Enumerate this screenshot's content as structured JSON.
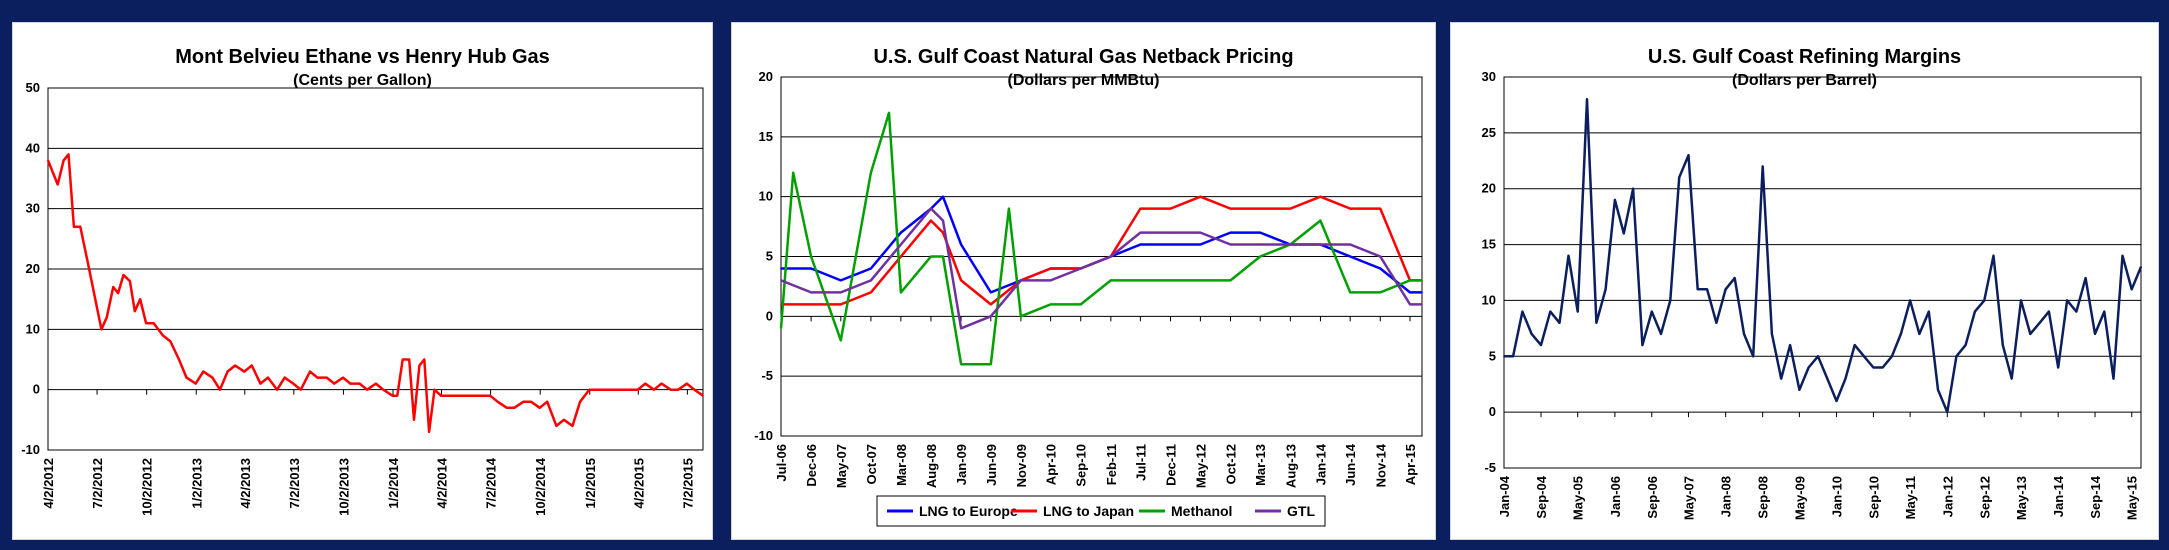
{
  "colors": {
    "background": "#0b1f5e",
    "ethane": "#ff0000",
    "lng_europe": "#0000ff",
    "lng_japan": "#ff0000",
    "methanol": "#00a000",
    "gtl": "#7030a0",
    "refining": "#0b1f5e"
  },
  "chart_data": [
    {
      "type": "line",
      "title": "Mont Belvieu Ethane vs Henry Hub Gas",
      "subtitle": "(Cents per Gallon)",
      "xlabel": "",
      "ylabel": "",
      "ylim": [
        -10,
        50
      ],
      "yticks": [
        50,
        40,
        30,
        20,
        10,
        0,
        -10
      ],
      "xrange": [
        "2012-04-02",
        "2015-07-31"
      ],
      "xtick_labels": [
        "4/2/2012",
        "7/2/2012",
        "10/2/2012",
        "1/2/2013",
        "4/2/2013",
        "7/2/2013",
        "10/2/2013",
        "1/2/2014",
        "4/2/2014",
        "7/2/2014",
        "10/2/2014",
        "1/2/2015",
        "4/2/2015",
        "7/2/2015"
      ],
      "grid": "horizontal",
      "series": [
        {
          "color": "#ff0000",
          "x": [
            "2012-04-02",
            "2012-04-20",
            "2012-05-01",
            "2012-05-10",
            "2012-05-20",
            "2012-06-01",
            "2012-06-15",
            "2012-07-01",
            "2012-07-10",
            "2012-07-20",
            "2012-08-01",
            "2012-08-10",
            "2012-08-20",
            "2012-09-01",
            "2012-09-10",
            "2012-09-20",
            "2012-10-01",
            "2012-10-15",
            "2012-11-01",
            "2012-11-15",
            "2012-12-01",
            "2012-12-15",
            "2013-01-01",
            "2013-01-15",
            "2013-02-01",
            "2013-02-15",
            "2013-03-01",
            "2013-03-15",
            "2013-04-01",
            "2013-04-15",
            "2013-05-01",
            "2013-05-15",
            "2013-06-01",
            "2013-06-15",
            "2013-07-01",
            "2013-07-15",
            "2013-08-01",
            "2013-08-15",
            "2013-09-01",
            "2013-09-15",
            "2013-10-01",
            "2013-10-15",
            "2013-11-01",
            "2013-11-15",
            "2013-12-01",
            "2013-12-15",
            "2014-01-01",
            "2014-01-10",
            "2014-01-20",
            "2014-02-01",
            "2014-02-10",
            "2014-02-20",
            "2014-03-01",
            "2014-03-10",
            "2014-03-20",
            "2014-04-01",
            "2014-04-15",
            "2014-05-01",
            "2014-05-15",
            "2014-06-01",
            "2014-06-15",
            "2014-07-01",
            "2014-07-15",
            "2014-08-01",
            "2014-08-15",
            "2014-09-01",
            "2014-09-15",
            "2014-10-01",
            "2014-10-15",
            "2014-11-01",
            "2014-11-15",
            "2014-12-01",
            "2014-12-15",
            "2015-01-01",
            "2015-01-15",
            "2015-02-01",
            "2015-02-15",
            "2015-03-01",
            "2015-03-15",
            "2015-04-01",
            "2015-04-15",
            "2015-05-01",
            "2015-05-15",
            "2015-06-01",
            "2015-06-15",
            "2015-07-01",
            "2015-07-15",
            "2015-07-31"
          ],
          "y": [
            38,
            34,
            38,
            39,
            27,
            27,
            21,
            14,
            10,
            12,
            17,
            16,
            19,
            18,
            13,
            15,
            11,
            11,
            9,
            8,
            5,
            2,
            1,
            3,
            2,
            0,
            3,
            4,
            3,
            4,
            1,
            2,
            0,
            2,
            1,
            0,
            3,
            2,
            2,
            1,
            2,
            1,
            1,
            0,
            1,
            0,
            -1,
            -1,
            5,
            5,
            -5,
            4,
            5,
            -7,
            0,
            -1,
            -1,
            -1,
            -1,
            -1,
            -1,
            -1,
            -2,
            -3,
            -3,
            -2,
            -2,
            -3,
            -2,
            -6,
            -5,
            -6,
            -2,
            0,
            0,
            0,
            0,
            0,
            0,
            0,
            1,
            0,
            1,
            0,
            0,
            1,
            0,
            -1
          ]
        }
      ]
    },
    {
      "type": "line",
      "title": "U.S. Gulf Coast Natural Gas Netback Pricing",
      "subtitle": "(Dollars per MMBtu)",
      "xlabel": "",
      "ylabel": "",
      "ylim": [
        -10,
        20
      ],
      "yticks": [
        20,
        15,
        10,
        5,
        0,
        -5,
        -10
      ],
      "xrange": [
        "2006-07",
        "2015-06"
      ],
      "xtick_labels": [
        "Jul-06",
        "Dec-06",
        "May-07",
        "Oct-07",
        "Mar-08",
        "Aug-08",
        "Jan-09",
        "Jun-09",
        "Nov-09",
        "Apr-10",
        "Sep-10",
        "Feb-11",
        "Jul-11",
        "Dec-11",
        "May-12",
        "Oct-12",
        "Mar-13",
        "Aug-13",
        "Jan-14",
        "Jun-14",
        "Nov-14",
        "Apr-15"
      ],
      "grid": "horizontal",
      "legend": "bottom-center",
      "series": [
        {
          "name": "LNG to Europe",
          "color": "#0000ff",
          "x": [
            "2006-07",
            "2006-12",
            "2007-05",
            "2007-10",
            "2008-03",
            "2008-08",
            "2008-10",
            "2009-01",
            "2009-06",
            "2009-11",
            "2010-04",
            "2010-09",
            "2011-02",
            "2011-07",
            "2011-12",
            "2012-05",
            "2012-10",
            "2013-03",
            "2013-08",
            "2014-01",
            "2014-06",
            "2014-11",
            "2015-04",
            "2015-06"
          ],
          "y": [
            4,
            4,
            3,
            4,
            7,
            9,
            10,
            6,
            2,
            3,
            4,
            4,
            5,
            6,
            6,
            6,
            7,
            7,
            6,
            6,
            5,
            4,
            2,
            2
          ]
        },
        {
          "name": "LNG to Japan",
          "color": "#ff0000",
          "x": [
            "2006-07",
            "2006-12",
            "2007-05",
            "2007-10",
            "2008-03",
            "2008-08",
            "2008-10",
            "2009-01",
            "2009-06",
            "2009-11",
            "2010-04",
            "2010-09",
            "2011-02",
            "2011-07",
            "2011-12",
            "2012-05",
            "2012-10",
            "2013-03",
            "2013-08",
            "2014-01",
            "2014-06",
            "2014-11",
            "2015-04",
            "2015-06"
          ],
          "y": [
            1,
            1,
            1,
            2,
            5,
            8,
            7,
            3,
            1,
            3,
            4,
            4,
            5,
            9,
            9,
            10,
            9,
            9,
            9,
            10,
            9,
            9,
            3,
            3
          ]
        },
        {
          "name": "Methanol",
          "color": "#00a000",
          "x": [
            "2006-07",
            "2006-09",
            "2006-12",
            "2007-05",
            "2007-10",
            "2008-01",
            "2008-03",
            "2008-08",
            "2008-10",
            "2009-01",
            "2009-06",
            "2009-09",
            "2009-11",
            "2010-04",
            "2010-09",
            "2011-02",
            "2011-07",
            "2011-12",
            "2012-05",
            "2012-10",
            "2013-03",
            "2013-08",
            "2014-01",
            "2014-06",
            "2014-11",
            "2015-04",
            "2015-06"
          ],
          "y": [
            -1,
            12,
            5,
            -2,
            12,
            17,
            2,
            5,
            5,
            -4,
            -4,
            9,
            0,
            1,
            1,
            3,
            3,
            3,
            3,
            3,
            5,
            6,
            8,
            2,
            2,
            3,
            3
          ]
        },
        {
          "name": "GTL",
          "color": "#7030a0",
          "x": [
            "2006-07",
            "2006-12",
            "2007-05",
            "2007-10",
            "2008-03",
            "2008-08",
            "2008-10",
            "2009-01",
            "2009-06",
            "2009-11",
            "2010-04",
            "2010-09",
            "2011-02",
            "2011-07",
            "2011-12",
            "2012-05",
            "2012-10",
            "2013-03",
            "2013-08",
            "2014-01",
            "2014-06",
            "2014-11",
            "2015-04",
            "2015-06"
          ],
          "y": [
            3,
            2,
            2,
            3,
            6,
            9,
            8,
            -1,
            0,
            3,
            3,
            4,
            5,
            7,
            7,
            7,
            6,
            6,
            6,
            6,
            6,
            5,
            1,
            1
          ]
        }
      ]
    },
    {
      "type": "line",
      "title": "U.S. Gulf Coast Refining Margins",
      "subtitle": "(Dollars per Barrel)",
      "xlabel": "",
      "ylabel": "",
      "ylim": [
        -5,
        30
      ],
      "yticks": [
        30,
        25,
        20,
        15,
        10,
        5,
        0,
        -5
      ],
      "xrange": [
        "2004-01",
        "2015-07"
      ],
      "xtick_labels": [
        "Jan-04",
        "Sep-04",
        "May-05",
        "Jan-06",
        "Sep-06",
        "May-07",
        "Jan-08",
        "Sep-08",
        "May-09",
        "Jan-10",
        "Sep-10",
        "May-11",
        "Jan-12",
        "Sep-12",
        "May-13",
        "Jan-14",
        "Sep-14",
        "May-15"
      ],
      "grid": "horizontal",
      "series": [
        {
          "color": "#0b1f5e",
          "x": [
            "2004-01",
            "2004-03",
            "2004-05",
            "2004-07",
            "2004-09",
            "2004-11",
            "2005-01",
            "2005-03",
            "2005-05",
            "2005-07",
            "2005-09",
            "2005-11",
            "2006-01",
            "2006-03",
            "2006-05",
            "2006-07",
            "2006-09",
            "2006-11",
            "2007-01",
            "2007-03",
            "2007-05",
            "2007-07",
            "2007-09",
            "2007-11",
            "2008-01",
            "2008-03",
            "2008-05",
            "2008-07",
            "2008-09",
            "2008-11",
            "2009-01",
            "2009-03",
            "2009-05",
            "2009-07",
            "2009-09",
            "2009-11",
            "2010-01",
            "2010-03",
            "2010-05",
            "2010-07",
            "2010-09",
            "2010-11",
            "2011-01",
            "2011-03",
            "2011-05",
            "2011-07",
            "2011-09",
            "2011-11",
            "2012-01",
            "2012-03",
            "2012-05",
            "2012-07",
            "2012-09",
            "2012-11",
            "2013-01",
            "2013-03",
            "2013-05",
            "2013-07",
            "2013-09",
            "2013-11",
            "2014-01",
            "2014-03",
            "2014-05",
            "2014-07",
            "2014-09",
            "2014-11",
            "2015-01",
            "2015-03",
            "2015-05",
            "2015-07"
          ],
          "y": [
            5,
            5,
            9,
            7,
            6,
            9,
            8,
            14,
            9,
            28,
            8,
            11,
            19,
            16,
            20,
            6,
            9,
            7,
            10,
            21,
            23,
            11,
            11,
            8,
            11,
            12,
            7,
            5,
            22,
            7,
            3,
            6,
            2,
            4,
            5,
            3,
            1,
            3,
            6,
            5,
            4,
            4,
            5,
            7,
            10,
            7,
            9,
            2,
            0,
            5,
            6,
            9,
            10,
            14,
            6,
            3,
            10,
            7,
            8,
            9,
            4,
            10,
            9,
            12,
            7,
            9,
            3,
            14,
            11,
            13
          ]
        }
      ]
    }
  ]
}
